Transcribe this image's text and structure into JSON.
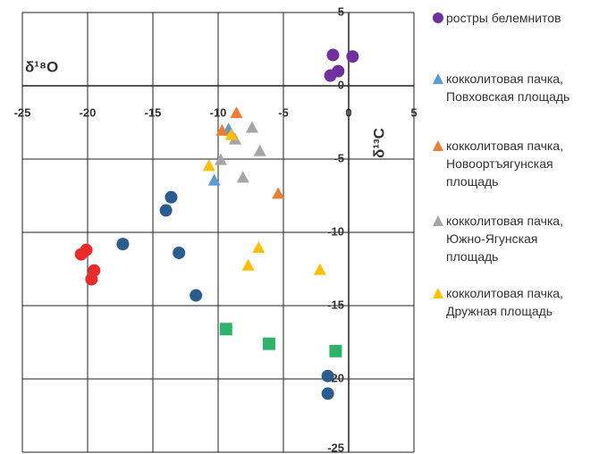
{
  "chart_data": {
    "type": "scatter",
    "x_label": "δ¹⁸O",
    "y_label": "δ¹³C",
    "xlim": [
      -25,
      5
    ],
    "xticks": [
      -25,
      -20,
      -15,
      -10,
      -5,
      0,
      5
    ],
    "ylim": [
      -25,
      5
    ],
    "yticks": [
      -25,
      -20,
      -15,
      -10,
      -5,
      0,
      5
    ],
    "grid": true,
    "series": [
      {
        "name": "ростры белемнитов",
        "color": "#7030a0",
        "marker": "circle",
        "x": [
          -1.2,
          0.3,
          -0.8,
          -1.4
        ],
        "values": [
          2.1,
          2.0,
          1.0,
          0.7
        ]
      },
      {
        "name": "кокколитовая пачка,\nПовховская площадь",
        "color": "#5b9bd5",
        "marker": "triangle",
        "x": [
          -9.2,
          -10.3
        ],
        "values": [
          -3.0,
          -6.5
        ]
      },
      {
        "name": "кокколитовая пачка,\nНовоортъягунская\nплощадь",
        "color": "#ed7d31",
        "marker": "triangle",
        "x": [
          -8.6,
          -9.7,
          -5.4
        ],
        "values": [
          -1.9,
          -3.1,
          -7.4
        ]
      },
      {
        "name": "кокколитовая пачка,\nЮжно-Ягунская\nплощадь",
        "color": "#a5a5a5",
        "marker": "triangle",
        "x": [
          -7.4,
          -8.7,
          -9.8,
          -6.8,
          -8.1
        ],
        "values": [
          -2.9,
          -3.7,
          -5.1,
          -4.5,
          -6.3
        ]
      },
      {
        "name": "кокколитовая пачка,\nДружная  площадь",
        "color": "#ffc000",
        "marker": "triangle",
        "x": [
          -10.7,
          -9.0,
          -6.9,
          -7.7,
          -2.2
        ],
        "values": [
          -5.5,
          -3.4,
          -11.1,
          -12.3,
          -12.6
        ]
      },
      {
        "color": "#2a5d8f",
        "marker": "circle",
        "x": [
          -13.6,
          -14.0,
          -17.3,
          -13.0,
          -11.7,
          -1.6,
          -1.6
        ],
        "values": [
          -7.6,
          -8.5,
          -10.8,
          -11.4,
          -14.3,
          -19.8,
          -21.0
        ]
      },
      {
        "color": "#ec2a2a",
        "marker": "circle",
        "x": [
          -20.1,
          -20.5,
          -19.5,
          -19.7
        ],
        "values": [
          -11.2,
          -11.5,
          -12.6,
          -13.2
        ]
      },
      {
        "color": "#2fb36a",
        "marker": "square",
        "x": [
          -9.4,
          -6.1,
          -1.0
        ],
        "values": [
          -16.6,
          -17.6,
          -18.1
        ]
      }
    ]
  }
}
